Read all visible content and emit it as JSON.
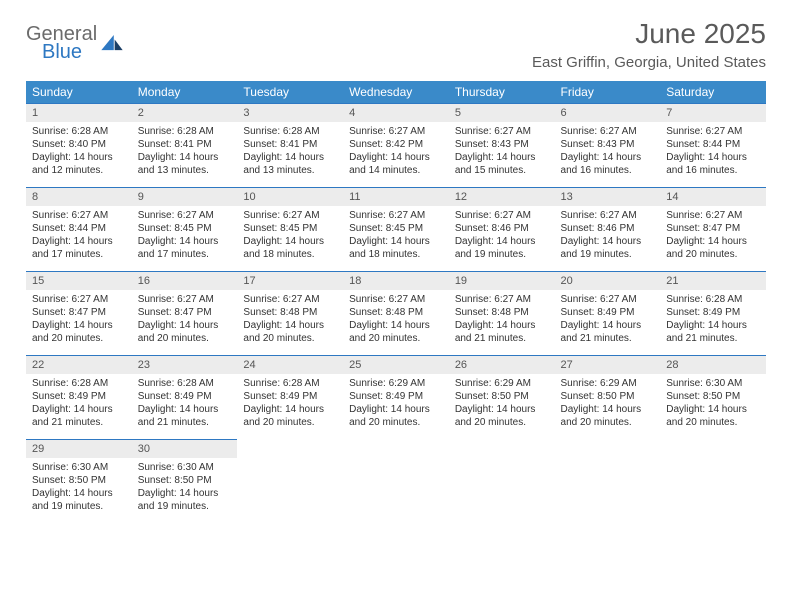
{
  "brand": {
    "line1": "General",
    "line2": "Blue"
  },
  "header": {
    "title": "June 2025",
    "location": "East Griffin, Georgia, United States"
  },
  "colors": {
    "header_bg": "#3a8ac9",
    "header_text": "#ffffff",
    "daynum_bg": "#ececec",
    "daynum_border": "#2e78c2",
    "body_text": "#333333",
    "logo_gray": "#6b6b6b",
    "logo_blue": "#2e78c2"
  },
  "weekdays": [
    "Sunday",
    "Monday",
    "Tuesday",
    "Wednesday",
    "Thursday",
    "Friday",
    "Saturday"
  ],
  "weeks": [
    [
      {
        "n": "1",
        "sr": "Sunrise: 6:28 AM",
        "ss": "Sunset: 8:40 PM",
        "d1": "Daylight: 14 hours",
        "d2": "and 12 minutes."
      },
      {
        "n": "2",
        "sr": "Sunrise: 6:28 AM",
        "ss": "Sunset: 8:41 PM",
        "d1": "Daylight: 14 hours",
        "d2": "and 13 minutes."
      },
      {
        "n": "3",
        "sr": "Sunrise: 6:28 AM",
        "ss": "Sunset: 8:41 PM",
        "d1": "Daylight: 14 hours",
        "d2": "and 13 minutes."
      },
      {
        "n": "4",
        "sr": "Sunrise: 6:27 AM",
        "ss": "Sunset: 8:42 PM",
        "d1": "Daylight: 14 hours",
        "d2": "and 14 minutes."
      },
      {
        "n": "5",
        "sr": "Sunrise: 6:27 AM",
        "ss": "Sunset: 8:43 PM",
        "d1": "Daylight: 14 hours",
        "d2": "and 15 minutes."
      },
      {
        "n": "6",
        "sr": "Sunrise: 6:27 AM",
        "ss": "Sunset: 8:43 PM",
        "d1": "Daylight: 14 hours",
        "d2": "and 16 minutes."
      },
      {
        "n": "7",
        "sr": "Sunrise: 6:27 AM",
        "ss": "Sunset: 8:44 PM",
        "d1": "Daylight: 14 hours",
        "d2": "and 16 minutes."
      }
    ],
    [
      {
        "n": "8",
        "sr": "Sunrise: 6:27 AM",
        "ss": "Sunset: 8:44 PM",
        "d1": "Daylight: 14 hours",
        "d2": "and 17 minutes."
      },
      {
        "n": "9",
        "sr": "Sunrise: 6:27 AM",
        "ss": "Sunset: 8:45 PM",
        "d1": "Daylight: 14 hours",
        "d2": "and 17 minutes."
      },
      {
        "n": "10",
        "sr": "Sunrise: 6:27 AM",
        "ss": "Sunset: 8:45 PM",
        "d1": "Daylight: 14 hours",
        "d2": "and 18 minutes."
      },
      {
        "n": "11",
        "sr": "Sunrise: 6:27 AM",
        "ss": "Sunset: 8:45 PM",
        "d1": "Daylight: 14 hours",
        "d2": "and 18 minutes."
      },
      {
        "n": "12",
        "sr": "Sunrise: 6:27 AM",
        "ss": "Sunset: 8:46 PM",
        "d1": "Daylight: 14 hours",
        "d2": "and 19 minutes."
      },
      {
        "n": "13",
        "sr": "Sunrise: 6:27 AM",
        "ss": "Sunset: 8:46 PM",
        "d1": "Daylight: 14 hours",
        "d2": "and 19 minutes."
      },
      {
        "n": "14",
        "sr": "Sunrise: 6:27 AM",
        "ss": "Sunset: 8:47 PM",
        "d1": "Daylight: 14 hours",
        "d2": "and 20 minutes."
      }
    ],
    [
      {
        "n": "15",
        "sr": "Sunrise: 6:27 AM",
        "ss": "Sunset: 8:47 PM",
        "d1": "Daylight: 14 hours",
        "d2": "and 20 minutes."
      },
      {
        "n": "16",
        "sr": "Sunrise: 6:27 AM",
        "ss": "Sunset: 8:47 PM",
        "d1": "Daylight: 14 hours",
        "d2": "and 20 minutes."
      },
      {
        "n": "17",
        "sr": "Sunrise: 6:27 AM",
        "ss": "Sunset: 8:48 PM",
        "d1": "Daylight: 14 hours",
        "d2": "and 20 minutes."
      },
      {
        "n": "18",
        "sr": "Sunrise: 6:27 AM",
        "ss": "Sunset: 8:48 PM",
        "d1": "Daylight: 14 hours",
        "d2": "and 20 minutes."
      },
      {
        "n": "19",
        "sr": "Sunrise: 6:27 AM",
        "ss": "Sunset: 8:48 PM",
        "d1": "Daylight: 14 hours",
        "d2": "and 21 minutes."
      },
      {
        "n": "20",
        "sr": "Sunrise: 6:27 AM",
        "ss": "Sunset: 8:49 PM",
        "d1": "Daylight: 14 hours",
        "d2": "and 21 minutes."
      },
      {
        "n": "21",
        "sr": "Sunrise: 6:28 AM",
        "ss": "Sunset: 8:49 PM",
        "d1": "Daylight: 14 hours",
        "d2": "and 21 minutes."
      }
    ],
    [
      {
        "n": "22",
        "sr": "Sunrise: 6:28 AM",
        "ss": "Sunset: 8:49 PM",
        "d1": "Daylight: 14 hours",
        "d2": "and 21 minutes."
      },
      {
        "n": "23",
        "sr": "Sunrise: 6:28 AM",
        "ss": "Sunset: 8:49 PM",
        "d1": "Daylight: 14 hours",
        "d2": "and 21 minutes."
      },
      {
        "n": "24",
        "sr": "Sunrise: 6:28 AM",
        "ss": "Sunset: 8:49 PM",
        "d1": "Daylight: 14 hours",
        "d2": "and 20 minutes."
      },
      {
        "n": "25",
        "sr": "Sunrise: 6:29 AM",
        "ss": "Sunset: 8:49 PM",
        "d1": "Daylight: 14 hours",
        "d2": "and 20 minutes."
      },
      {
        "n": "26",
        "sr": "Sunrise: 6:29 AM",
        "ss": "Sunset: 8:50 PM",
        "d1": "Daylight: 14 hours",
        "d2": "and 20 minutes."
      },
      {
        "n": "27",
        "sr": "Sunrise: 6:29 AM",
        "ss": "Sunset: 8:50 PM",
        "d1": "Daylight: 14 hours",
        "d2": "and 20 minutes."
      },
      {
        "n": "28",
        "sr": "Sunrise: 6:30 AM",
        "ss": "Sunset: 8:50 PM",
        "d1": "Daylight: 14 hours",
        "d2": "and 20 minutes."
      }
    ],
    [
      {
        "n": "29",
        "sr": "Sunrise: 6:30 AM",
        "ss": "Sunset: 8:50 PM",
        "d1": "Daylight: 14 hours",
        "d2": "and 19 minutes."
      },
      {
        "n": "30",
        "sr": "Sunrise: 6:30 AM",
        "ss": "Sunset: 8:50 PM",
        "d1": "Daylight: 14 hours",
        "d2": "and 19 minutes."
      },
      null,
      null,
      null,
      null,
      null
    ]
  ]
}
